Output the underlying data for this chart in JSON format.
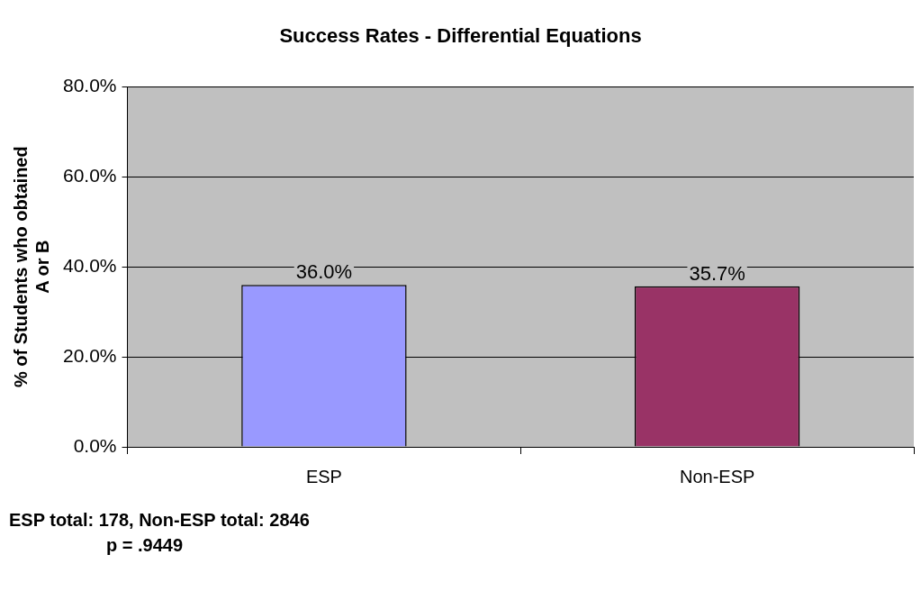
{
  "chart_data": {
    "type": "bar",
    "title": "Success Rates - Differential Equations",
    "ylabel": "% of Students who obtained A or B",
    "categories": [
      "ESP",
      "Non-ESP"
    ],
    "values": [
      36.0,
      35.7
    ],
    "colors": [
      "#9999ff",
      "#993366"
    ],
    "value_labels": [
      "36.0%",
      "35.7%"
    ],
    "ylim": [
      0,
      80
    ],
    "yticks": [
      {
        "value": 0,
        "label": "0.0%"
      },
      {
        "value": 20,
        "label": "20.0%"
      },
      {
        "value": 40,
        "label": "40.0%"
      },
      {
        "value": 60,
        "label": "60.0%"
      },
      {
        "value": 80,
        "label": "80.0%"
      }
    ],
    "grid": "y",
    "legend": false,
    "annotations": [
      "ESP total: 178, Non-ESP total: 2846",
      "p = .9449"
    ]
  }
}
